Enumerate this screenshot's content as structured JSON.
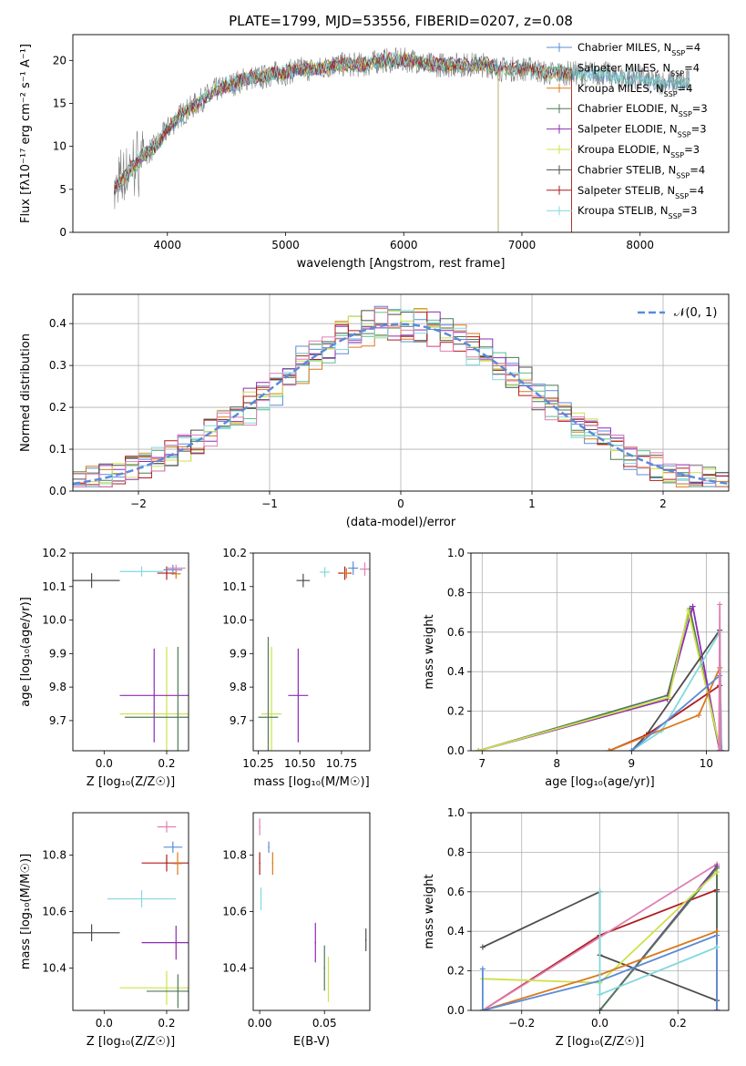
{
  "figure": {
    "title": "PLATE=1799, MJD=53556, FIBERID=0207, z=0.08"
  },
  "colors": {
    "Chabrier MILES": "#5b8bd9",
    "Salpeter MILES": "#5dbf8a",
    "Kroupa MILES": "#d97a1f",
    "Chabrier ELODIE": "#4e7a57",
    "Salpeter ELODIE": "#8e2bb5",
    "Kroupa ELODIE": "#cfe04a",
    "Chabrier STELIB": "#4d4d4d",
    "Salpeter STELIB": "#b01c1c",
    "Kroupa STELIB": "#82d8de",
    "pink": "#e07fb4",
    "normal": "#5b8bd9"
  },
  "chart_data": [
    {
      "type": "line",
      "id": "spectrum",
      "title": "PLATE=1799, MJD=53556, FIBERID=0207, z=0.08",
      "xlabel": "wavelength [Angstrom, rest frame]",
      "ylabel": "Flux [fλ10⁻¹⁷ erg cm⁻² s⁻¹ A⁻¹]",
      "xlim": [
        3200,
        8750
      ],
      "ylim": [
        0,
        23
      ],
      "xticks": [
        4000,
        5000,
        6000,
        7000,
        8000
      ],
      "yticks": [
        0,
        5,
        10,
        15,
        20
      ],
      "legend_position": "bottom-right",
      "x": [
        3550,
        3700,
        3800,
        3900,
        4000,
        4100,
        4200,
        4300,
        4400,
        4500,
        4600,
        4700,
        4800,
        4900,
        5000,
        5100,
        5200,
        5300,
        5400,
        5500,
        5600,
        5700,
        5800,
        5900,
        6000,
        6100,
        6200,
        6300,
        6400,
        6500,
        6600,
        6700,
        6800,
        6900,
        7000,
        7100,
        7200,
        7300,
        7400,
        7500,
        7600,
        7700,
        7800,
        7900,
        8000,
        8100,
        8200,
        8300,
        8400
      ],
      "y": [
        5,
        7.5,
        9,
        10,
        12,
        13.5,
        14.5,
        15.5,
        16.5,
        17,
        17.5,
        18,
        18,
        18.5,
        18.5,
        19,
        19,
        19,
        19.5,
        19.5,
        19.5,
        19.5,
        20,
        20,
        20,
        20,
        19.5,
        19.5,
        19.5,
        19.5,
        19.5,
        19.5,
        19,
        19,
        19,
        19,
        18.5,
        18.5,
        18.5,
        18.5,
        18.5,
        18.5,
        18,
        18,
        18,
        17.5,
        17.5,
        17.5,
        17.5
      ],
      "series": [
        {
          "name": "Chabrier MILES, N",
          "sub": "SSP",
          "suffix": "=4"
        },
        {
          "name": "Salpeter MILES, N",
          "sub": "SSP",
          "suffix": "=4"
        },
        {
          "name": "Kroupa MILES, N",
          "sub": "SSP",
          "suffix": "=4"
        },
        {
          "name": "Chabrier ELODIE, N",
          "sub": "SSP",
          "suffix": "=3"
        },
        {
          "name": "Salpeter ELODIE, N",
          "sub": "SSP",
          "suffix": "=3"
        },
        {
          "name": "Kroupa ELODIE, N",
          "sub": "SSP",
          "suffix": "=3"
        },
        {
          "name": "Chabrier STELIB, N",
          "sub": "SSP",
          "suffix": "=4"
        },
        {
          "name": "Salpeter STELIB, N",
          "sub": "SSP",
          "suffix": "=4"
        },
        {
          "name": "Kroupa STELIB, N",
          "sub": "SSP",
          "suffix": "=3"
        }
      ]
    },
    {
      "type": "line",
      "id": "residuals",
      "xlabel": "(data-model)/error",
      "ylabel": "Normed distribution",
      "xlim": [
        -2.5,
        2.5
      ],
      "ylim": [
        0,
        0.47
      ],
      "xticks": [
        -2,
        -1,
        0,
        1,
        2
      ],
      "xtick_labels": [
        "−2",
        "−1",
        "0",
        "1",
        "2"
      ],
      "yticks": [
        0,
        0.1,
        0.2,
        0.3,
        0.4
      ],
      "ytick_labels": [
        "0.0",
        "0.1",
        "0.2",
        "0.3",
        "0.4"
      ],
      "legend": "𝒩(0, 1)",
      "legend_position": "top-right",
      "grid": true
    },
    {
      "type": "scatter",
      "id": "age_vs_Z",
      "xlabel": "Z [log₁₀(Z/Z☉)]",
      "ylabel": "age  [log₁₀(age/yr)]",
      "xlim": [
        -0.1,
        0.27
      ],
      "ylim": [
        9.61,
        10.2
      ],
      "xticks": [
        0,
        0.2
      ],
      "xtick_labels": [
        "0.0",
        "0.2"
      ],
      "yticks": [
        9.7,
        9.8,
        9.9,
        10.0,
        10.1,
        10.2
      ],
      "ytick_labels": [
        "9.7",
        "9.8",
        "9.9",
        "10.0",
        "10.1",
        "10.2"
      ],
      "points": [
        {
          "x": -0.04,
          "y": 10.118,
          "xerr": 0.09,
          "yerr": 0.022,
          "c": "Chabrier STELIB"
        },
        {
          "x": 0.12,
          "y": 10.145,
          "xerr": 0.07,
          "yerr": 0.015,
          "c": "Kroupa STELIB"
        },
        {
          "x": 0.2,
          "y": 10.14,
          "xerr": 0.03,
          "yerr": 0.02,
          "c": "Salpeter STELIB"
        },
        {
          "x": 0.22,
          "y": 10.15,
          "xerr": 0.03,
          "yerr": 0.015,
          "c": "Chabrier MILES"
        },
        {
          "x": 0.23,
          "y": 10.138,
          "xerr": 0.015,
          "yerr": 0.015,
          "c": "Kroupa MILES"
        },
        {
          "x": 0.23,
          "y": 10.155,
          "xerr": 0.03,
          "yerr": 0.01,
          "c": "pink"
        },
        {
          "x": 0.2,
          "y": 9.72,
          "xerr": 0.15,
          "yerr": 0.2,
          "c": "Kroupa ELODIE"
        },
        {
          "x": 0.16,
          "y": 9.775,
          "xerr": 0.11,
          "yerr": 0.14,
          "c": "Salpeter ELODIE"
        },
        {
          "x": 0.236,
          "y": 9.71,
          "xerr": 0.17,
          "yerr": 0.21,
          "c": "Chabrier ELODIE"
        }
      ]
    },
    {
      "type": "scatter",
      "id": "age_vs_mass",
      "xlabel": "mass [log₁₀(M/M☉)]",
      "xlim": [
        10.22,
        10.92
      ],
      "ylim": [
        9.61,
        10.2
      ],
      "xticks": [
        10.25,
        10.5,
        10.75
      ],
      "xtick_labels": [
        "10.25",
        "10.50",
        "10.75"
      ],
      "yticks": [
        9.7,
        9.8,
        9.9,
        10.0,
        10.1,
        10.2
      ],
      "ytick_labels": [
        "9.7",
        "9.8",
        "9.9",
        "10.0",
        "10.1",
        "10.2"
      ],
      "points": [
        {
          "x": 10.52,
          "y": 10.118,
          "xerr": 0.04,
          "yerr": 0.02,
          "c": "Chabrier STELIB"
        },
        {
          "x": 10.65,
          "y": 10.143,
          "xerr": 0.03,
          "yerr": 0.015,
          "c": "Kroupa STELIB"
        },
        {
          "x": 10.77,
          "y": 10.14,
          "xerr": 0.04,
          "yerr": 0.02,
          "c": "Salpeter STELIB"
        },
        {
          "x": 10.82,
          "y": 10.155,
          "xerr": 0.03,
          "yerr": 0.02,
          "c": "Chabrier MILES"
        },
        {
          "x": 10.78,
          "y": 10.14,
          "xerr": 0.02,
          "yerr": 0.015,
          "c": "Kroupa MILES"
        },
        {
          "x": 10.89,
          "y": 10.152,
          "xerr": 0.03,
          "yerr": 0.02,
          "c": "pink"
        },
        {
          "x": 10.33,
          "y": 9.72,
          "xerr": 0.06,
          "yerr": 0.2,
          "c": "Kroupa ELODIE"
        },
        {
          "x": 10.49,
          "y": 9.775,
          "xerr": 0.06,
          "yerr": 0.14,
          "c": "Salpeter ELODIE"
        },
        {
          "x": 10.31,
          "y": 9.71,
          "xerr": 0.06,
          "yerr": 0.24,
          "c": "Chabrier ELODIE"
        }
      ]
    },
    {
      "type": "line",
      "id": "massweight_vs_age",
      "xlabel": "age  [log₁₀(age/yr)]",
      "ylabel": "mass weight",
      "xlim": [
        6.85,
        10.3
      ],
      "ylim": [
        0,
        1
      ],
      "xticks": [
        7,
        8,
        9,
        10
      ],
      "yticks": [
        0,
        0.2,
        0.4,
        0.6,
        0.8,
        1
      ],
      "ytick_labels": [
        "0.0",
        "0.2",
        "0.4",
        "0.6",
        "0.8",
        "1.0"
      ],
      "grid": true,
      "series": [
        {
          "c": "Chabrier ELODIE",
          "x": [
            6.95,
            9.48,
            9.78,
            10.18,
            10.2
          ],
          "y": [
            0.0,
            0.28,
            0.72,
            0.0,
            0.0
          ]
        },
        {
          "c": "Salpeter ELODIE",
          "x": [
            6.95,
            9.48,
            9.82,
            10.18
          ],
          "y": [
            0.0,
            0.26,
            0.73,
            0.0
          ]
        },
        {
          "c": "Kroupa ELODIE",
          "x": [
            6.95,
            9.5,
            9.76,
            10.18
          ],
          "y": [
            0.0,
            0.27,
            0.71,
            0.02
          ]
        },
        {
          "c": "Chabrier STELIB",
          "x": [
            9.0,
            9.2,
            10.18,
            10.2
          ],
          "y": [
            0.0,
            0.08,
            0.61,
            0.0
          ]
        },
        {
          "c": "Salpeter STELIB",
          "x": [
            8.7,
            9.2,
            10.18,
            10.2
          ],
          "y": [
            0.0,
            0.08,
            0.33,
            0.0
          ]
        },
        {
          "c": "Kroupa STELIB",
          "x": [
            9.0,
            9.4,
            10.18,
            10.2
          ],
          "y": [
            0.0,
            0.1,
            0.6,
            0.0
          ]
        },
        {
          "c": "Kroupa MILES",
          "x": [
            8.7,
            9.9,
            10.18,
            10.2
          ],
          "y": [
            0.0,
            0.18,
            0.42,
            0.0
          ]
        },
        {
          "c": "Chabrier MILES",
          "x": [
            9.0,
            10.18,
            10.2
          ],
          "y": [
            0.0,
            0.38,
            0.0
          ]
        },
        {
          "c": "pink",
          "x": [
            10.17,
            10.18,
            10.19
          ],
          "y": [
            0.0,
            0.74,
            0.0
          ]
        }
      ]
    },
    {
      "type": "scatter",
      "id": "mass_vs_Z",
      "xlabel": "Z [log₁₀(Z/Z☉)]",
      "ylabel": "mass [log₁₀(M/M☉)]",
      "xlim": [
        -0.1,
        0.27
      ],
      "ylim": [
        10.25,
        10.95
      ],
      "xticks": [
        0,
        0.2
      ],
      "xtick_labels": [
        "0.0",
        "0.2"
      ],
      "yticks": [
        10.4,
        10.6,
        10.8
      ],
      "ytick_labels": [
        "10.4",
        "10.6",
        "10.8"
      ],
      "points": [
        {
          "x": -0.04,
          "y": 10.525,
          "xerr": 0.09,
          "yerr": 0.03,
          "c": "Chabrier STELIB"
        },
        {
          "x": 0.12,
          "y": 10.645,
          "xerr": 0.11,
          "yerr": 0.03,
          "c": "Kroupa STELIB"
        },
        {
          "x": 0.2,
          "y": 10.772,
          "xerr": 0.08,
          "yerr": 0.03,
          "c": "Salpeter STELIB"
        },
        {
          "x": 0.22,
          "y": 10.828,
          "xerr": 0.03,
          "yerr": 0.02,
          "c": "Chabrier MILES"
        },
        {
          "x": 0.235,
          "y": 10.77,
          "xerr": 0.015,
          "yerr": 0.04,
          "c": "Kroupa MILES"
        },
        {
          "x": 0.2,
          "y": 10.9,
          "xerr": 0.03,
          "yerr": 0.02,
          "c": "pink"
        },
        {
          "x": 0.2,
          "y": 10.33,
          "xerr": 0.15,
          "yerr": 0.06,
          "c": "Kroupa ELODIE"
        },
        {
          "x": 0.23,
          "y": 10.49,
          "xerr": 0.11,
          "yerr": 0.06,
          "c": "Salpeter ELODIE"
        },
        {
          "x": 0.236,
          "y": 10.318,
          "xerr": 0.1,
          "yerr": 0.06,
          "c": "Chabrier ELODIE"
        }
      ]
    },
    {
      "type": "scatter",
      "id": "mass_vs_EBV",
      "xlabel": "E(B-V)",
      "xlim": [
        -0.005,
        0.085
      ],
      "ylim": [
        10.25,
        10.95
      ],
      "xticks": [
        0,
        0.05
      ],
      "xtick_labels": [
        "0.00",
        "0.05"
      ],
      "yticks": [
        10.4,
        10.6,
        10.8
      ],
      "ytick_labels": [
        "10.4",
        "10.6",
        "10.8"
      ],
      "points": [
        {
          "x": 0.0,
          "y": 10.9,
          "yerr": 0.03,
          "c": "pink"
        },
        {
          "x": 0.0,
          "y": 10.77,
          "yerr": 0.04,
          "c": "Salpeter STELIB"
        },
        {
          "x": 0.001,
          "y": 10.645,
          "yerr": 0.04,
          "c": "Kroupa STELIB"
        },
        {
          "x": 0.007,
          "y": 10.828,
          "yerr": 0.02,
          "c": "Chabrier MILES"
        },
        {
          "x": 0.01,
          "y": 10.77,
          "yerr": 0.04,
          "c": "Kroupa MILES"
        },
        {
          "x": 0.043,
          "y": 10.49,
          "yerr": 0.07,
          "c": "Salpeter ELODIE"
        },
        {
          "x": 0.05,
          "y": 10.4,
          "yerr": 0.08,
          "c": "Chabrier ELODIE"
        },
        {
          "x": 0.053,
          "y": 10.36,
          "yerr": 0.08,
          "c": "Kroupa ELODIE"
        },
        {
          "x": 0.082,
          "y": 10.5,
          "yerr": 0.04,
          "c": "Chabrier STELIB"
        }
      ]
    },
    {
      "type": "line",
      "id": "massweight_vs_Z",
      "xlabel": "Z [log₁₀(Z/Z☉)]",
      "ylabel": "mass weight",
      "xlim": [
        -0.33,
        0.33
      ],
      "ylim": [
        0,
        1
      ],
      "xticks": [
        -0.2,
        0,
        0.2
      ],
      "xtick_labels": [
        "−0.2",
        "0.0",
        "0.2"
      ],
      "yticks": [
        0,
        0.2,
        0.4,
        0.6,
        0.8,
        1
      ],
      "ytick_labels": [
        "0.0",
        "0.2",
        "0.4",
        "0.6",
        "0.8",
        "1.0"
      ],
      "grid": true,
      "series": [
        {
          "c": "Chabrier STELIB",
          "x": [
            -0.3,
            0.0,
            0.0,
            0.3,
            0.3
          ],
          "y": [
            0.32,
            0.6,
            0.28,
            0.05,
            0.6
          ]
        },
        {
          "c": "Salpeter STELIB",
          "x": [
            -0.3,
            0.0,
            0.3,
            0.3
          ],
          "y": [
            0.0,
            0.38,
            0.61,
            0.0
          ]
        },
        {
          "c": "pink",
          "x": [
            -0.3,
            0.3,
            0.3
          ],
          "y": [
            0.0,
            0.74,
            0.0
          ]
        },
        {
          "c": "Salpeter ELODIE",
          "x": [
            0.0,
            0.3,
            0.3
          ],
          "y": [
            0.0,
            0.73,
            0.0
          ]
        },
        {
          "c": "Chabrier ELODIE",
          "x": [
            0.0,
            0.3,
            0.3
          ],
          "y": [
            0.0,
            0.72,
            0.0
          ]
        },
        {
          "c": "Kroupa ELODIE",
          "x": [
            -0.3,
            0.0,
            0.3
          ],
          "y": [
            0.16,
            0.14,
            0.7
          ]
        },
        {
          "c": "Kroupa MILES",
          "x": [
            -0.3,
            0.0,
            0.3,
            0.3
          ],
          "y": [
            0.0,
            0.18,
            0.4,
            0.0
          ]
        },
        {
          "c": "Chabrier MILES",
          "x": [
            -0.3,
            -0.3,
            0.0,
            0.3,
            0.3
          ],
          "y": [
            0.21,
            0.0,
            0.15,
            0.38,
            0.0
          ]
        },
        {
          "c": "Kroupa STELIB",
          "x": [
            0.0,
            0.0,
            0.3
          ],
          "y": [
            0.6,
            0.08,
            0.32
          ]
        }
      ]
    }
  ]
}
